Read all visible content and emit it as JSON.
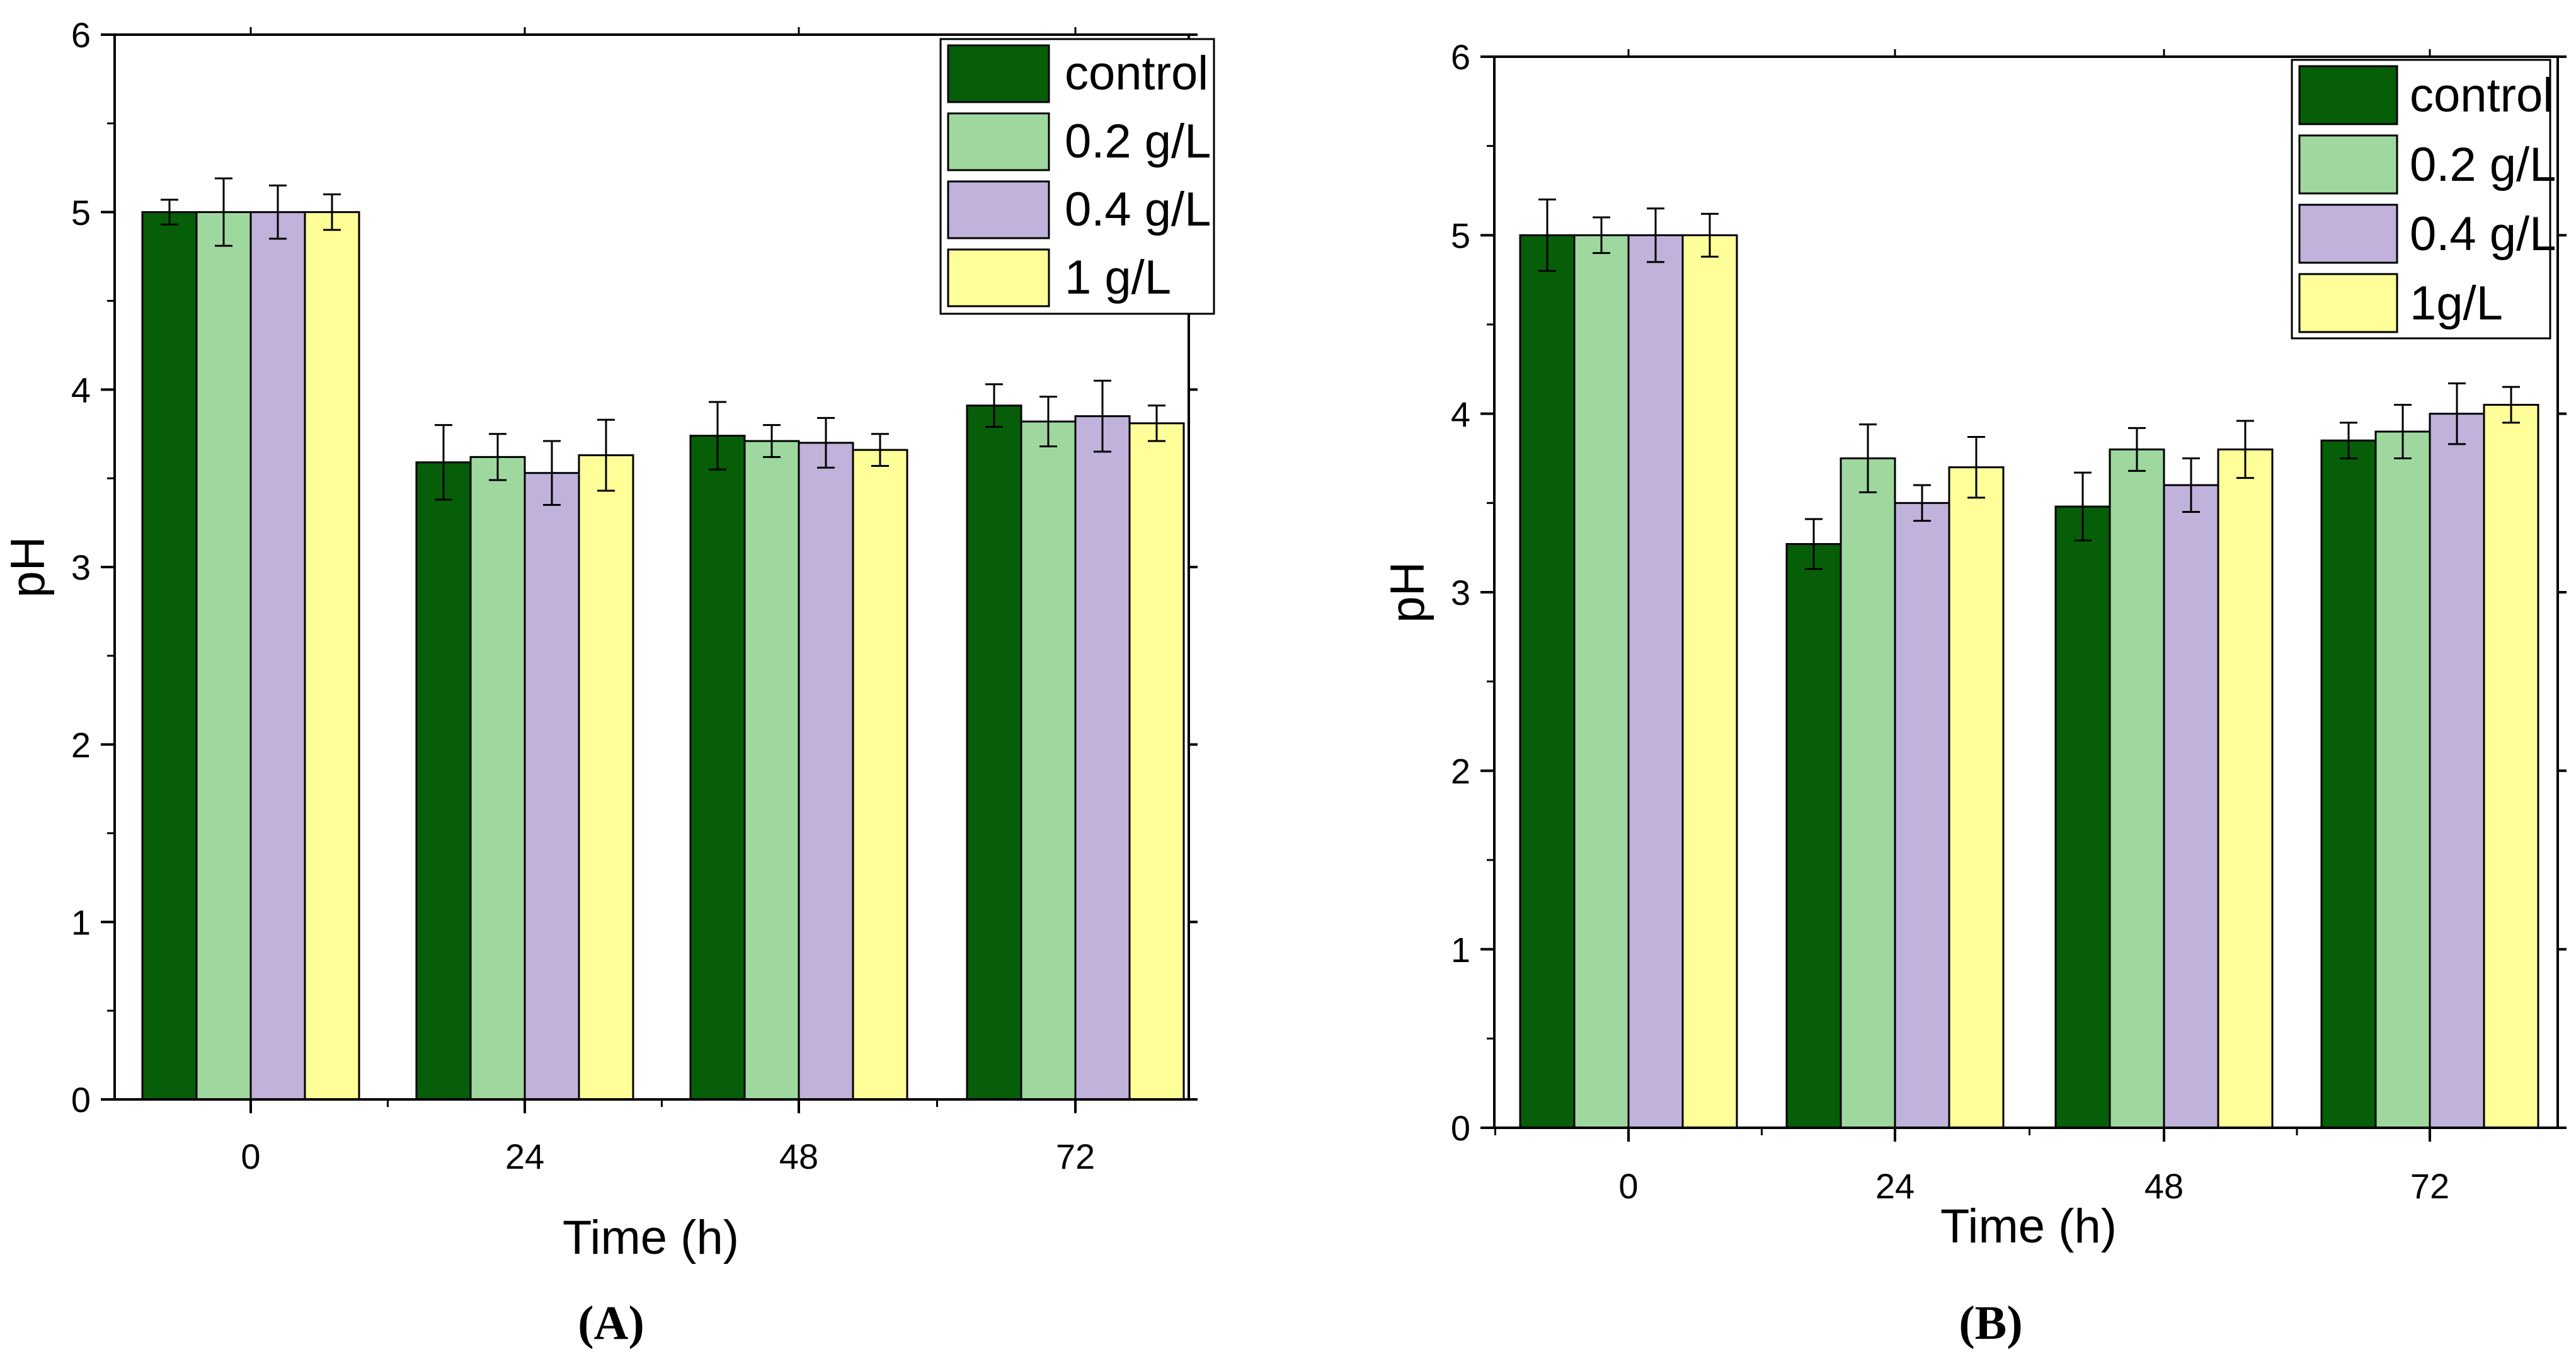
{
  "colors": {
    "control": "#075e08",
    "0.2 g/L": "#9fd89f",
    "0.4 g/L": "#c0b2db",
    "1 g/L": "#ffff99",
    "1g/L": "#ffff99"
  },
  "chart_data": [
    {
      "type": "bar",
      "panel_label_parts": [
        "(",
        "A",
        ")"
      ],
      "categories": [
        "0",
        "24",
        "48",
        "72"
      ],
      "xlabel": "Time (h)",
      "ylabel": "pH",
      "ylim": [
        0,
        6
      ],
      "yticks": [
        "0",
        "1",
        "2",
        "3",
        "4",
        "5",
        "6"
      ],
      "grid": false,
      "legend_position": "top-right",
      "error_bars": true,
      "series": [
        {
          "name": "control",
          "values": [
            5.0,
            3.59,
            3.74,
            3.91
          ],
          "errors": [
            0.07,
            0.21,
            0.19,
            0.12
          ]
        },
        {
          "name": "0.2 g/L",
          "values": [
            5.0,
            3.62,
            3.71,
            3.82
          ],
          "errors": [
            0.19,
            0.13,
            0.09,
            0.14
          ]
        },
        {
          "name": "0.4 g/L",
          "values": [
            5.0,
            3.53,
            3.7,
            3.85
          ],
          "errors": [
            0.15,
            0.18,
            0.14,
            0.2
          ]
        },
        {
          "name": "1 g/L",
          "values": [
            5.0,
            3.63,
            3.66,
            3.81
          ],
          "errors": [
            0.1,
            0.2,
            0.09,
            0.1
          ]
        }
      ]
    },
    {
      "type": "bar",
      "panel_label_parts": [
        "(",
        "B",
        ")"
      ],
      "categories": [
        "0",
        "24",
        "48",
        "72"
      ],
      "xlabel": "Time (h)",
      "ylabel": "pH",
      "ylim": [
        0,
        6
      ],
      "yticks": [
        "0",
        "1",
        "2",
        "3",
        "4",
        "5",
        "6"
      ],
      "grid": false,
      "legend_position": "top-right",
      "error_bars": true,
      "series": [
        {
          "name": "control",
          "values": [
            5.0,
            3.27,
            3.48,
            3.85
          ],
          "errors": [
            0.2,
            0.14,
            0.19,
            0.1
          ]
        },
        {
          "name": "0.2 g/L",
          "values": [
            5.0,
            3.75,
            3.8,
            3.9
          ],
          "errors": [
            0.1,
            0.19,
            0.12,
            0.15
          ]
        },
        {
          "name": "0.4 g/L",
          "values": [
            5.0,
            3.5,
            3.6,
            4.0
          ],
          "errors": [
            0.15,
            0.1,
            0.15,
            0.17
          ]
        },
        {
          "name": "1g/L",
          "values": [
            5.0,
            3.7,
            3.8,
            4.05
          ],
          "errors": [
            0.12,
            0.17,
            0.16,
            0.1
          ]
        }
      ]
    }
  ]
}
